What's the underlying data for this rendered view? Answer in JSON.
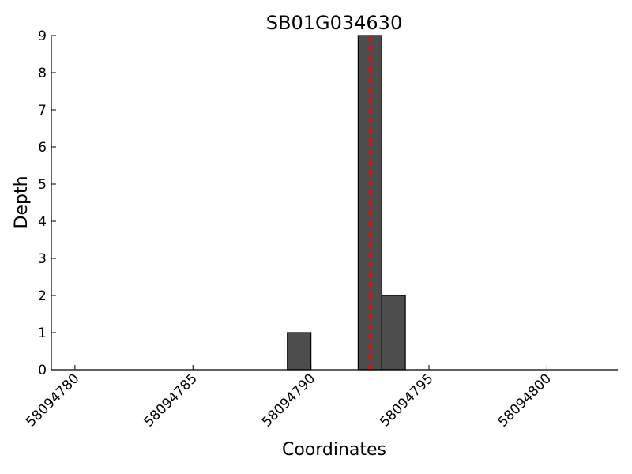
{
  "chart_data": {
    "type": "histogram",
    "title": "SB01G034630",
    "x_label": "Coordinates",
    "y_label": "Depth",
    "bins": [
      58094789,
      58094790,
      58094791,
      58094792,
      58094793,
      58094794
    ],
    "values": [
      1,
      0,
      0,
      9,
      2
    ],
    "color": "#4d4d4d",
    "xlim": [
      58094779,
      58094803
    ],
    "xticks": [
      58094780,
      58094785,
      58094790,
      58094795,
      58094800
    ],
    "ylim": [
      0,
      9
    ],
    "yticks": [
      0,
      1,
      2,
      3,
      4,
      5,
      6,
      7,
      8,
      9
    ],
    "vline": {
      "x": 58094792.5,
      "color": "#ff0000"
    }
  }
}
